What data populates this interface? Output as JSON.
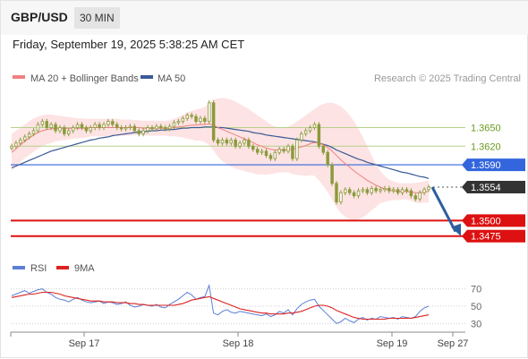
{
  "header": {
    "symbol": "GBP/USD",
    "timeframe": "30 MIN",
    "datetime": "Friday, September 19, 2025 5:38:25 AM CET"
  },
  "legend": {
    "ma20_label": "MA 20 + Bollinger Bands",
    "ma50_label": "MA 50",
    "credit": "Research © 2025 Trading Central",
    "rsi_label": "RSI",
    "rsi_ma_label": "9MA"
  },
  "colors": {
    "ma20": "#f08080",
    "ma50": "#3a5a95",
    "bollinger_fill": "#fde3e3",
    "candle": "#8b9a3b",
    "resistance": "#b5d08a",
    "pivot": "#3366dd",
    "support": "#dd1111",
    "current": "#333333",
    "arrow": "#2d5f9e",
    "rsi": "#5b7fd6",
    "rsi_ma": "#dd2222"
  },
  "chart_data": [
    {
      "type": "candlestick",
      "ylim": [
        1.345,
        1.371
      ],
      "x_labels": [
        "Sep 17",
        "Sep 18",
        "Sep 19",
        "Sep 27"
      ],
      "levels": [
        {
          "label": "1.3650",
          "value": 1.365,
          "kind": "resistance"
        },
        {
          "label": "1.3620",
          "value": 1.362,
          "kind": "resistance"
        },
        {
          "label": "1.3590",
          "value": 1.359,
          "kind": "pivot"
        },
        {
          "label": "1.3554",
          "value": 1.3554,
          "kind": "current"
        },
        {
          "label": "1.3500",
          "value": 1.35,
          "kind": "support"
        },
        {
          "label": "1.3475",
          "value": 1.3475,
          "kind": "support"
        }
      ],
      "close": [
        1.362,
        1.3625,
        1.363,
        1.3635,
        1.364,
        1.3645,
        1.3655,
        1.366,
        1.365,
        1.3655,
        1.3645,
        1.365,
        1.364,
        1.3645,
        1.365,
        1.3655,
        1.365,
        1.3645,
        1.365,
        1.3655,
        1.365,
        1.3655,
        1.366,
        1.3655,
        1.365,
        1.3648,
        1.365,
        1.3652,
        1.3645,
        1.364,
        1.3645,
        1.365,
        1.3648,
        1.3652,
        1.365,
        1.3648,
        1.3652,
        1.3658,
        1.366,
        1.3665,
        1.367,
        1.3668,
        1.366,
        1.3665,
        1.366,
        1.369,
        1.363,
        1.3625,
        1.363,
        1.3625,
        1.363,
        1.362,
        1.3625,
        1.363,
        1.362,
        1.3615,
        1.361,
        1.3612,
        1.3605,
        1.36,
        1.361,
        1.3615,
        1.3612,
        1.362,
        1.36,
        1.363,
        1.364,
        1.3645,
        1.365,
        1.3655,
        1.362,
        1.361,
        1.359,
        1.356,
        1.353,
        1.3545,
        1.355,
        1.3545,
        1.354,
        1.3548,
        1.355,
        1.3545,
        1.3552,
        1.3548,
        1.355,
        1.3552,
        1.3548,
        1.355,
        1.3545,
        1.355,
        1.3548,
        1.354,
        1.3535,
        1.3545,
        1.355,
        1.3554
      ],
      "ma20": [
        1.361,
        1.3616,
        1.3622,
        1.3628,
        1.3633,
        1.3638,
        1.3642,
        1.3645,
        1.3647,
        1.3648,
        1.3649,
        1.3649,
        1.3649,
        1.3649,
        1.3649,
        1.3649,
        1.3649,
        1.3649,
        1.365,
        1.365,
        1.365,
        1.365,
        1.365,
        1.365,
        1.365,
        1.365,
        1.365,
        1.365,
        1.365,
        1.365,
        1.3649,
        1.3649,
        1.3649,
        1.3649,
        1.3649,
        1.3649,
        1.3649,
        1.365,
        1.3651,
        1.3652,
        1.3653,
        1.3654,
        1.3654,
        1.3655,
        1.3655,
        1.3656,
        1.3654,
        1.365,
        1.3647,
        1.3644,
        1.3641,
        1.3638,
        1.3635,
        1.3632,
        1.3629,
        1.3626,
        1.3622,
        1.362,
        1.3617,
        1.3615,
        1.3614,
        1.3614,
        1.3614,
        1.3615,
        1.3615,
        1.3617,
        1.3619,
        1.3621,
        1.3624,
        1.3626,
        1.3625,
        1.3622,
        1.3618,
        1.3612,
        1.3605,
        1.3598,
        1.3592,
        1.3586,
        1.358,
        1.3575,
        1.357,
        1.3565,
        1.3561,
        1.3557,
        1.3554,
        1.3551,
        1.3549,
        1.3548,
        1.3547,
        1.3547,
        1.3547,
        1.3546,
        1.3545,
        1.3545,
        1.3546,
        1.3547
      ],
      "ma50": [
        1.3585,
        1.3588,
        1.3591,
        1.3594,
        1.3597,
        1.36,
        1.3603,
        1.3606,
        1.3609,
        1.3612,
        1.3614,
        1.3616,
        1.3618,
        1.362,
        1.3622,
        1.3624,
        1.3626,
        1.3628,
        1.363,
        1.3631,
        1.3633,
        1.3634,
        1.3635,
        1.3637,
        1.3638,
        1.3639,
        1.364,
        1.3641,
        1.3642,
        1.3643,
        1.3643,
        1.3644,
        1.3645,
        1.3645,
        1.3646,
        1.3646,
        1.3647,
        1.3647,
        1.3648,
        1.3649,
        1.3649,
        1.365,
        1.365,
        1.365,
        1.3651,
        1.3651,
        1.3651,
        1.365,
        1.365,
        1.3649,
        1.3648,
        1.3647,
        1.3646,
        1.3645,
        1.3644,
        1.3642,
        1.3641,
        1.364,
        1.3638,
        1.3637,
        1.3636,
        1.3635,
        1.3634,
        1.3633,
        1.3632,
        1.3631,
        1.363,
        1.3629,
        1.3628,
        1.3627,
        1.3625,
        1.3623,
        1.3621,
        1.3618,
        1.3614,
        1.3611,
        1.3608,
        1.3605,
        1.3602,
        1.3599,
        1.3597,
        1.3594,
        1.3592,
        1.359,
        1.3588,
        1.3586,
        1.3584,
        1.3582,
        1.358,
        1.3578,
        1.3577,
        1.3575,
        1.3573,
        1.3571,
        1.357,
        1.3568
      ],
      "bb_upper": [
        1.364,
        1.3645,
        1.365,
        1.3655,
        1.366,
        1.3665,
        1.3668,
        1.367,
        1.3671,
        1.3671,
        1.367,
        1.3669,
        1.3668,
        1.3667,
        1.3666,
        1.3665,
        1.3665,
        1.3664,
        1.3664,
        1.3664,
        1.3664,
        1.3664,
        1.3664,
        1.3664,
        1.3664,
        1.3663,
        1.3663,
        1.3663,
        1.3662,
        1.3662,
        1.3661,
        1.3661,
        1.3661,
        1.3661,
        1.3661,
        1.3661,
        1.3662,
        1.3664,
        1.3667,
        1.367,
        1.3674,
        1.3677,
        1.3679,
        1.3681,
        1.3683,
        1.369,
        1.3695,
        1.3697,
        1.3698,
        1.3697,
        1.3695,
        1.3692,
        1.3688,
        1.3684,
        1.368,
        1.3675,
        1.367,
        1.3665,
        1.366,
        1.3655,
        1.3652,
        1.365,
        1.365,
        1.3652,
        1.3655,
        1.366,
        1.3665,
        1.367,
        1.3675,
        1.368,
        1.3685,
        1.3688,
        1.369,
        1.369,
        1.3688,
        1.3684,
        1.3678,
        1.367,
        1.366,
        1.3648,
        1.3635,
        1.362,
        1.3605,
        1.3592,
        1.358,
        1.3572,
        1.3566,
        1.3563,
        1.3561,
        1.356,
        1.356,
        1.356,
        1.3561,
        1.3562,
        1.3563,
        1.3565
      ],
      "bb_lower": [
        1.358,
        1.3587,
        1.3594,
        1.3601,
        1.3606,
        1.3611,
        1.3616,
        1.362,
        1.3623,
        1.3625,
        1.3628,
        1.3629,
        1.363,
        1.3631,
        1.3632,
        1.3633,
        1.3633,
        1.3634,
        1.3636,
        1.3636,
        1.3636,
        1.3636,
        1.3636,
        1.3636,
        1.3636,
        1.3637,
        1.3637,
        1.3637,
        1.3638,
        1.3638,
        1.3637,
        1.3637,
        1.3637,
        1.3637,
        1.3637,
        1.3637,
        1.3636,
        1.3636,
        1.3635,
        1.3634,
        1.3632,
        1.3631,
        1.3629,
        1.3629,
        1.3627,
        1.3622,
        1.3613,
        1.3603,
        1.3596,
        1.3591,
        1.3587,
        1.3584,
        1.3582,
        1.358,
        1.3578,
        1.3577,
        1.3574,
        1.3575,
        1.3574,
        1.3575,
        1.3576,
        1.3578,
        1.3578,
        1.3578,
        1.3575,
        1.3574,
        1.3573,
        1.3572,
        1.3573,
        1.3572,
        1.3565,
        1.3556,
        1.3546,
        1.3534,
        1.3522,
        1.3512,
        1.3506,
        1.3502,
        1.35,
        1.3502,
        1.3505,
        1.351,
        1.3517,
        1.3522,
        1.3528,
        1.353,
        1.3532,
        1.3533,
        1.3533,
        1.3534,
        1.3534,
        1.3532,
        1.3529,
        1.3528,
        1.3529,
        1.3529
      ]
    },
    {
      "type": "line",
      "ylim": [
        20,
        80
      ],
      "y_ticks": [
        70,
        50,
        30
      ],
      "series": [
        {
          "name": "RSI",
          "values": [
            62,
            64,
            66,
            68,
            65,
            67,
            69,
            70,
            66,
            64,
            60,
            58,
            57,
            55,
            58,
            60,
            57,
            55,
            54,
            55,
            56,
            53,
            55,
            54,
            52,
            53,
            55,
            51,
            49,
            50,
            52,
            51,
            50,
            52,
            49,
            48,
            52,
            55,
            58,
            62,
            66,
            63,
            58,
            60,
            61,
            74,
            42,
            40,
            44,
            46,
            43,
            42,
            44,
            43,
            42,
            41,
            40,
            39,
            41,
            38,
            40,
            44,
            42,
            46,
            40,
            47,
            52,
            55,
            57,
            58,
            50,
            45,
            40,
            35,
            30,
            32,
            36,
            33,
            31,
            35,
            37,
            34,
            36,
            35,
            38,
            37,
            36,
            37,
            35,
            38,
            37,
            36,
            38,
            44,
            48,
            50
          ]
        },
        {
          "name": "9MA",
          "values": [
            60,
            61,
            62,
            63,
            64,
            64,
            65,
            66,
            66,
            66,
            65,
            64,
            62,
            61,
            60,
            59,
            58,
            57,
            56,
            56,
            56,
            55,
            55,
            55,
            54,
            54,
            54,
            53,
            53,
            52,
            52,
            51,
            51,
            51,
            51,
            51,
            51,
            51,
            52,
            53,
            55,
            57,
            58,
            59,
            60,
            61,
            59,
            57,
            55,
            53,
            51,
            49,
            47,
            46,
            45,
            44,
            43,
            42,
            42,
            41,
            41,
            41,
            41,
            42,
            42,
            43,
            44,
            46,
            48,
            50,
            51,
            51,
            50,
            48,
            45,
            43,
            41,
            39,
            37,
            36,
            35,
            35,
            35,
            35,
            35,
            35,
            36,
            36,
            36,
            36,
            36,
            36,
            37,
            38,
            39,
            40
          ]
        }
      ]
    }
  ]
}
